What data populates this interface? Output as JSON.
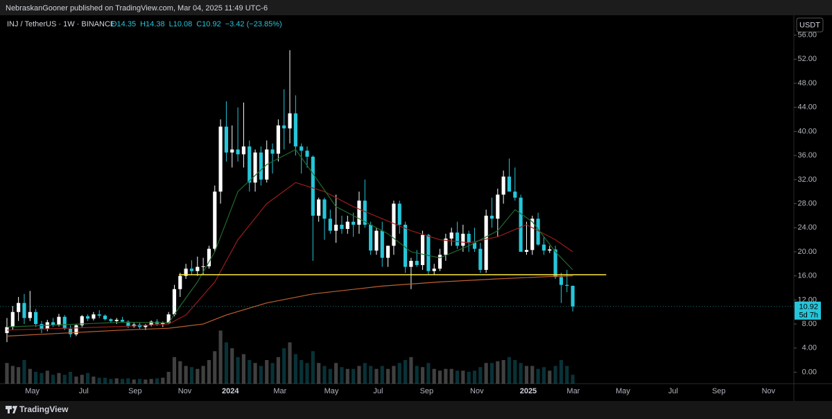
{
  "header": {
    "published": "NebraskanGooner published on TradingView.com, Mar 04, 2025 11:49 UTC-6",
    "symbol": "INJ / TetherUS · 1W · BINANCE",
    "ohlc": [
      "O14.35",
      "H14.38",
      "L10.08",
      "C10.92",
      "−3.42 (−23.85%)"
    ],
    "currency": "USDT",
    "countdown": "5d 7h"
  },
  "footer": {
    "brand": "TradingView"
  },
  "chart_data": {
    "type": "candlestick",
    "up_color": "#ffffff",
    "down_color": "#26c6da",
    "xlim": [
      -1.2,
      136.3
    ],
    "xticks": [
      {
        "value": 4.4,
        "label": "May"
      },
      {
        "value": 13.3,
        "label": "Jul"
      },
      {
        "value": 22.2,
        "label": "Sep"
      },
      {
        "value": 30.8,
        "label": "Nov"
      },
      {
        "value": 38.7,
        "label": "2024"
      },
      {
        "value": 47.3,
        "label": "Mar"
      },
      {
        "value": 56.2,
        "label": "May"
      },
      {
        "value": 64.3,
        "label": "Jul"
      },
      {
        "value": 72.7,
        "label": "Sep"
      },
      {
        "value": 81.4,
        "label": "Nov"
      },
      {
        "value": 90.3,
        "label": "2025"
      },
      {
        "value": 98.1,
        "label": "Mar"
      },
      {
        "value": 106.7,
        "label": "May"
      },
      {
        "value": 115.4,
        "label": "Jul"
      },
      {
        "value": 123.3,
        "label": "Sep"
      },
      {
        "value": 131.9,
        "label": "Nov"
      }
    ],
    "ylim": [
      -1.9,
      59.3
    ],
    "yticks": [
      {
        "value": 0,
        "label": "0.00"
      },
      {
        "value": 4,
        "label": "4.00"
      },
      {
        "value": 8,
        "label": "8.00"
      },
      {
        "value": 12,
        "label": "12.00"
      },
      {
        "value": 16,
        "label": "16.00"
      },
      {
        "value": 20,
        "label": "20.00"
      },
      {
        "value": 24,
        "label": "24.00"
      },
      {
        "value": 28,
        "label": "28.00"
      },
      {
        "value": 32,
        "label": "32.00"
      },
      {
        "value": 36,
        "label": "36.00"
      },
      {
        "value": 40,
        "label": "40.00"
      },
      {
        "value": 44,
        "label": "44.00"
      },
      {
        "value": 48,
        "label": "48.00"
      },
      {
        "value": 52,
        "label": "52.00"
      },
      {
        "value": 56,
        "label": "56.00"
      }
    ],
    "grid": false,
    "open": [
      6.5,
      7.5,
      10,
      11.5,
      9,
      10,
      8,
      7.2,
      8.3,
      7.8,
      9.2,
      7.2,
      6.3,
      7.8,
      9.3,
      8.9,
      9.6,
      9.4,
      8.8,
      8.5,
      8.7,
      8.4,
      7.6,
      7.9,
      7.5,
      7.8,
      8.4,
      8,
      8.2,
      9.6,
      13.8,
      16,
      17.2,
      16.8,
      17.5,
      17.6,
      20.5,
      30,
      40.8,
      36.5,
      37,
      36.2,
      37.5,
      31.5,
      36.5,
      32,
      37,
      36.3,
      41,
      40.5,
      43,
      37.5,
      36.8,
      35.8,
      26,
      28.7,
      25.5,
      23.5,
      24.5,
      23.8,
      25,
      24.5,
      28.5,
      24.5,
      20.2,
      23.5,
      19,
      21,
      28,
      24.5,
      17.5,
      18.5,
      17.8,
      22.8,
      16.8,
      17.2,
      19.5,
      22.2,
      23.2,
      21,
      23,
      21.5,
      20.5,
      17,
      26,
      25.5,
      29.5,
      32.5,
      30,
      29,
      20,
      20.3,
      25.5,
      21.2,
      20.2,
      20.4,
      15.8,
      14.5,
      14.35
    ],
    "high": [
      9,
      11,
      12.5,
      13,
      13.5,
      10.5,
      8.5,
      8.7,
      9,
      9.7,
      9.5,
      7.8,
      8,
      9.5,
      9.6,
      10,
      10.3,
      9.6,
      9,
      9,
      9.2,
      8.6,
      8.2,
      8.3,
      8,
      8.6,
      8.8,
      8.4,
      10,
      14.5,
      16.5,
      18,
      18.6,
      19.2,
      19,
      21,
      31,
      42,
      45,
      41,
      44,
      44.8,
      38.5,
      37,
      37.5,
      38.5,
      38,
      42,
      47,
      53.5,
      46,
      38,
      37.5,
      36,
      29,
      29,
      27,
      29.5,
      26,
      26,
      26.5,
      30,
      32,
      25,
      24,
      25,
      21,
      28.5,
      28.5,
      25,
      19,
      20.3,
      23.5,
      23,
      18,
      20.5,
      23,
      24,
      25,
      24.5,
      23.5,
      24,
      21.5,
      27,
      29,
      30.5,
      33.5,
      35.5,
      34,
      29.5,
      25,
      26,
      26.5,
      22.5,
      21,
      21,
      16.5,
      17,
      14.38
    ],
    "low": [
      5,
      7,
      8.5,
      8,
      8.5,
      7.5,
      6.5,
      6.8,
      7.5,
      7.6,
      7,
      5.8,
      6,
      7.5,
      8.5,
      8.6,
      9,
      8.6,
      8.2,
      8,
      8.2,
      7.3,
      7.4,
      7.2,
      7,
      7.6,
      7.7,
      7.5,
      8,
      9.3,
      12.5,
      15.5,
      16.2,
      16,
      16.3,
      17.2,
      20,
      28,
      35,
      34,
      35,
      34,
      30,
      30,
      31,
      31.5,
      33,
      35,
      37,
      38,
      36,
      33,
      34,
      18.5,
      25,
      22,
      23,
      21.5,
      23,
      23,
      22.5,
      23,
      24,
      19.5,
      19.5,
      17.5,
      17.5,
      19.5,
      23,
      16.5,
      13.8,
      17.5,
      17,
      16.2,
      16.2,
      16.8,
      18.5,
      21,
      20.5,
      20,
      20,
      20,
      16.5,
      16.5,
      24,
      22.5,
      28,
      30,
      28.5,
      20,
      19.5,
      19.5,
      21,
      19.5,
      19.8,
      15.5,
      11.5,
      13.3,
      10.08
    ],
    "close": [
      7.5,
      10,
      11.5,
      9,
      10,
      8,
      7.2,
      8.3,
      7.8,
      9.2,
      7.2,
      6.3,
      7.8,
      9.3,
      8.9,
      9.6,
      9.4,
      8.8,
      8.5,
      8.7,
      8.4,
      7.6,
      7.9,
      7.5,
      7.8,
      8.4,
      8,
      8.2,
      9.6,
      13.8,
      16,
      17.2,
      16.8,
      17.5,
      17.6,
      20.5,
      30,
      40.8,
      36.5,
      37,
      36.2,
      37.5,
      31.5,
      36.5,
      32,
      37,
      36.3,
      41,
      40.5,
      43,
      37.5,
      36.8,
      35.8,
      26,
      28.7,
      25.5,
      23.5,
      24.5,
      23.8,
      25,
      24.5,
      28.5,
      24.5,
      20.2,
      23.5,
      19,
      21,
      28,
      24.5,
      17.5,
      18.5,
      17.8,
      22.8,
      16.8,
      17.2,
      19.5,
      22.2,
      23.2,
      21,
      23,
      21.5,
      20.5,
      17,
      26,
      25.5,
      29.5,
      32.5,
      30,
      29,
      20,
      20.3,
      25.5,
      21.2,
      20.2,
      20.4,
      15.8,
      14.5,
      14.35,
      10.92
    ],
    "volume": [
      35,
      30,
      28,
      40,
      25,
      20,
      18,
      22,
      15,
      18,
      15,
      20,
      12,
      15,
      18,
      12,
      10,
      10,
      8,
      9,
      8,
      9,
      7,
      8,
      7,
      8,
      9,
      10,
      20,
      45,
      38,
      30,
      28,
      25,
      30,
      40,
      55,
      90,
      70,
      60,
      45,
      50,
      40,
      35,
      30,
      40,
      35,
      45,
      60,
      70,
      50,
      40,
      35,
      55,
      35,
      30,
      25,
      35,
      28,
      25,
      25,
      30,
      35,
      30,
      25,
      30,
      25,
      30,
      35,
      40,
      45,
      30,
      28,
      35,
      25,
      22,
      25,
      25,
      22,
      22,
      20,
      22,
      28,
      35,
      35,
      38,
      40,
      45,
      40,
      35,
      30,
      30,
      25,
      28,
      22,
      30,
      40,
      30,
      15
    ],
    "lines": [
      {
        "color": "#c0612f",
        "x": [
          0,
          20,
          28,
          34,
          38,
          45,
          53,
          65,
          75,
          85,
          94,
          98
        ],
        "values": [
          6,
          7,
          7.3,
          8,
          9.5,
          11.5,
          13,
          14.3,
          15,
          15.5,
          15.9,
          16
        ]
      },
      {
        "color": "#9b1c1c",
        "x": [
          0,
          20,
          28,
          31,
          36,
          40,
          45,
          50,
          55,
          60,
          65,
          70,
          75,
          80,
          85,
          90,
          95,
          98
        ],
        "values": [
          7,
          7.6,
          8,
          9.5,
          15,
          22,
          28,
          31.5,
          30,
          27.5,
          25.5,
          23.5,
          22,
          21.5,
          22.5,
          24.5,
          22,
          20
        ]
      },
      {
        "color": "#1f6b2c",
        "x": [
          0,
          20,
          28,
          30,
          33,
          36,
          40,
          45,
          50,
          53,
          57,
          62,
          66,
          70,
          75,
          80,
          85,
          88,
          91,
          95,
          98
        ],
        "values": [
          7.5,
          8.3,
          8.2,
          11,
          15,
          20,
          30,
          34.5,
          37,
          33,
          27.5,
          25,
          23,
          20,
          19,
          21,
          23.5,
          27,
          25,
          20,
          17
        ]
      }
    ],
    "hline": {
      "value": 16.2,
      "x": [
        29.8,
        103.8
      ],
      "color": "#ffeb3b"
    }
  }
}
